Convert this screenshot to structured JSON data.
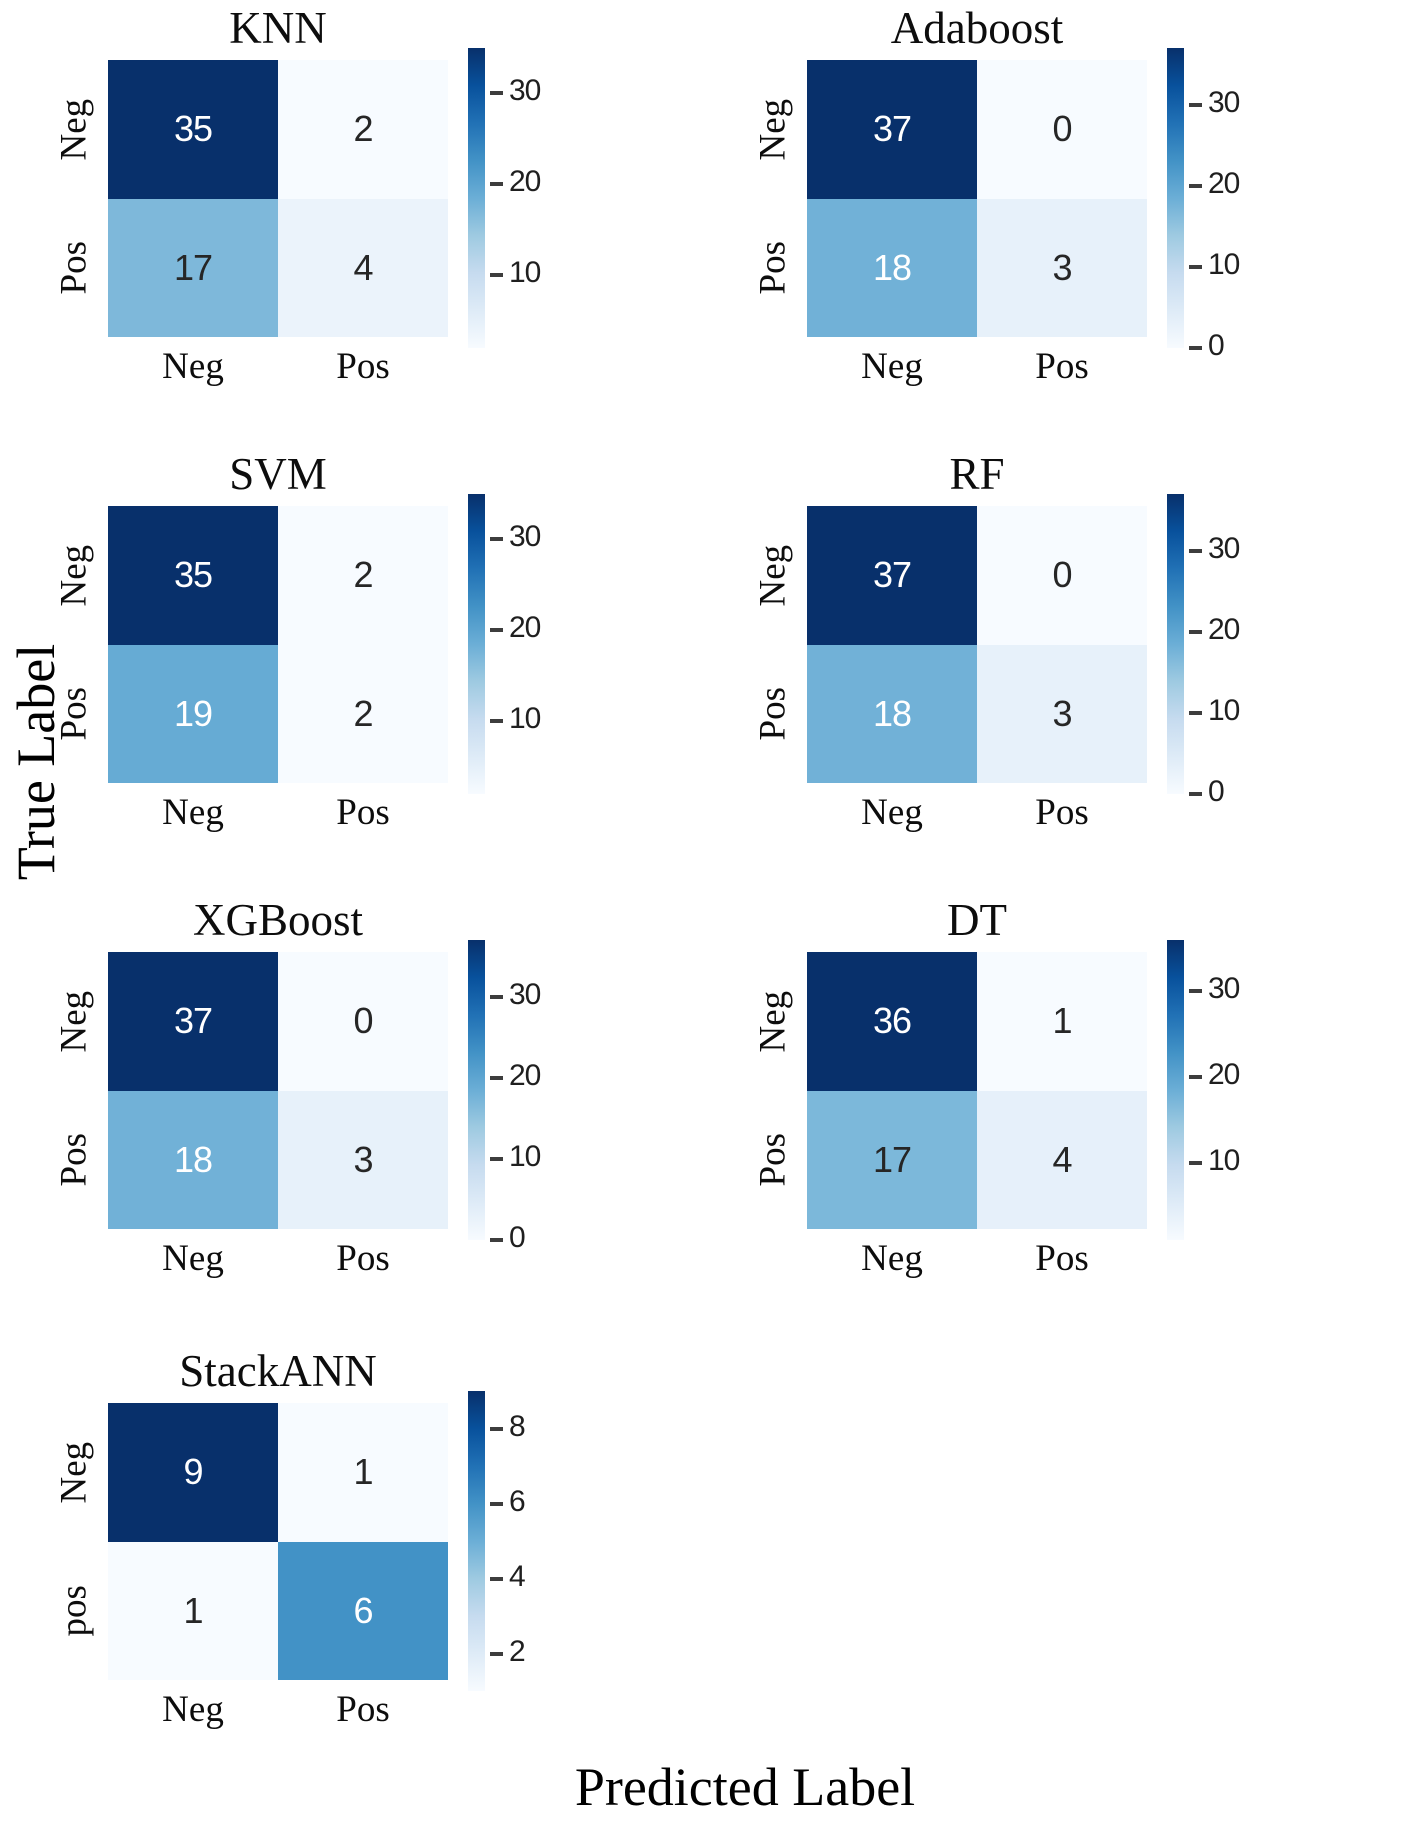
{
  "figure": {
    "y_axis_label": "True Label",
    "x_axis_label": "Predicted Label",
    "background": "#ffffff"
  },
  "colormap": {
    "name": "Blues",
    "anchors": [
      "#f7fbff",
      "#deebf7",
      "#c6dbef",
      "#9ecae1",
      "#6baed6",
      "#4292c6",
      "#2171b5",
      "#08519c",
      "#08306b"
    ],
    "annotation_text_light": "#ffffff",
    "annotation_text_dark": "#262626",
    "white_text_threshold": 0.47
  },
  "chart_data": [
    {
      "type": "heatmap",
      "title": "KNN",
      "row": 0,
      "col": 0,
      "row_labels": [
        "Neg",
        "Pos"
      ],
      "col_labels": [
        "Neg",
        "Pos"
      ],
      "values": [
        [
          35,
          2
        ],
        [
          17,
          4
        ]
      ],
      "vmin": 2,
      "vmax": 35,
      "colorbar_ticks": [
        30,
        20,
        10
      ]
    },
    {
      "type": "heatmap",
      "title": "Adaboost",
      "row": 0,
      "col": 1,
      "row_labels": [
        "Neg",
        "Pos"
      ],
      "col_labels": [
        "Neg",
        "Pos"
      ],
      "values": [
        [
          37,
          0
        ],
        [
          18,
          3
        ]
      ],
      "vmin": 0,
      "vmax": 37,
      "colorbar_ticks": [
        30,
        20,
        10,
        0
      ]
    },
    {
      "type": "heatmap",
      "title": "SVM",
      "row": 1,
      "col": 0,
      "row_labels": [
        "Neg",
        "Pos"
      ],
      "col_labels": [
        "Neg",
        "Pos"
      ],
      "values": [
        [
          35,
          2
        ],
        [
          19,
          2
        ]
      ],
      "vmin": 2,
      "vmax": 35,
      "colorbar_ticks": [
        30,
        20,
        10
      ]
    },
    {
      "type": "heatmap",
      "title": "RF",
      "row": 1,
      "col": 1,
      "row_labels": [
        "Neg",
        "Pos"
      ],
      "col_labels": [
        "Neg",
        "Pos"
      ],
      "values": [
        [
          37,
          0
        ],
        [
          18,
          3
        ]
      ],
      "vmin": 0,
      "vmax": 37,
      "colorbar_ticks": [
        30,
        20,
        10,
        0
      ]
    },
    {
      "type": "heatmap",
      "title": "XGBoost",
      "row": 2,
      "col": 0,
      "row_labels": [
        "Neg",
        "Pos"
      ],
      "col_labels": [
        "Neg",
        "Pos"
      ],
      "values": [
        [
          37,
          0
        ],
        [
          18,
          3
        ]
      ],
      "vmin": 0,
      "vmax": 37,
      "colorbar_ticks": [
        30,
        20,
        10,
        0
      ]
    },
    {
      "type": "heatmap",
      "title": "DT",
      "row": 2,
      "col": 1,
      "row_labels": [
        "Neg",
        "Pos"
      ],
      "col_labels": [
        "Neg",
        "Pos"
      ],
      "values": [
        [
          36,
          1
        ],
        [
          17,
          4
        ]
      ],
      "vmin": 1,
      "vmax": 36,
      "colorbar_ticks": [
        30,
        20,
        10
      ]
    },
    {
      "type": "heatmap",
      "title": "StackANN",
      "row": 3,
      "col": 0,
      "row_labels": [
        "Neg",
        "pos"
      ],
      "col_labels": [
        "Neg",
        "Pos"
      ],
      "values": [
        [
          9,
          1
        ],
        [
          1,
          6
        ]
      ],
      "vmin": 1,
      "vmax": 9,
      "colorbar_ticks": [
        8,
        6,
        4,
        2
      ]
    }
  ]
}
